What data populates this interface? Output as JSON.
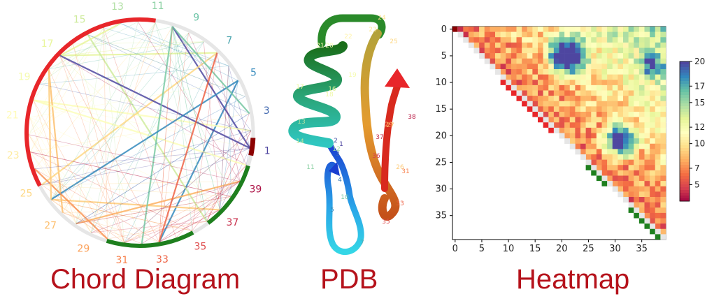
{
  "captions": {
    "chord": "Chord Diagram",
    "pdb": "PDB",
    "heatmap": "Heatmap"
  },
  "chart_data": [
    {
      "type": "chord",
      "node_labels": [
        "1",
        "3",
        "5",
        "7",
        "9",
        "11",
        "13",
        "15",
        "17",
        "19",
        "21",
        "23",
        "25",
        "27",
        "29",
        "31",
        "33",
        "35",
        "37",
        "39"
      ],
      "colors": {
        "red": "#e8262a",
        "green": "#1e7f1e",
        "dark_red": "#8b0000",
        "ring": "#e6e6e6"
      }
    },
    {
      "type": "structure",
      "residue_labels": [
        "1",
        "2",
        "3",
        "4",
        "5",
        "7",
        "10",
        "11",
        "12",
        "13",
        "14",
        "16",
        "17",
        "18",
        "19",
        "20",
        "21",
        "22",
        "23",
        "24",
        "25",
        "26",
        "27",
        "29",
        "31",
        "33",
        "35",
        "36",
        "37",
        "38"
      ]
    },
    {
      "type": "heatmap",
      "x_ticks": [
        "0",
        "5",
        "10",
        "15",
        "20",
        "25",
        "30",
        "35"
      ],
      "y_ticks": [
        "0",
        "5",
        "10",
        "15",
        "20",
        "25",
        "30",
        "35"
      ],
      "colorbar_ticks": [
        "20",
        "17",
        "15",
        "12",
        "10",
        "7",
        "5"
      ],
      "colorbar_range": [
        3,
        20
      ],
      "colormap": "Spectral",
      "size": 40
    }
  ]
}
